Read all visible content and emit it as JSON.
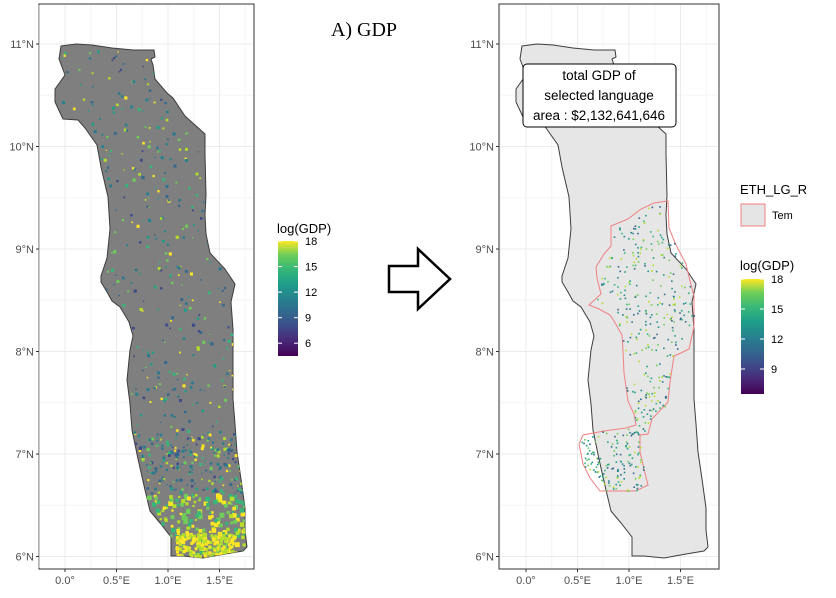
{
  "title": "A) GDP",
  "left_map": {
    "y_ticks": [
      {
        "label": "11°N",
        "lat": 11
      },
      {
        "label": "10°N",
        "lat": 10
      },
      {
        "label": "9°N",
        "lat": 9
      },
      {
        "label": "8°N",
        "lat": 8
      },
      {
        "label": "7°N",
        "lat": 7
      },
      {
        "label": "6°N",
        "lat": 6
      }
    ],
    "x_ticks": [
      {
        "label": "0.0°",
        "lon": 0.0
      },
      {
        "label": "0.5°E",
        "lon": 0.5
      },
      {
        "label": "1.0°E",
        "lon": 1.0
      },
      {
        "label": "1.5°E",
        "lon": 1.5
      }
    ],
    "legend": {
      "title": "log(GDP)",
      "range": [
        4.5,
        18
      ],
      "ticks": [
        {
          "label": "18",
          "value": 18
        },
        {
          "label": "15",
          "value": 15
        },
        {
          "label": "12",
          "value": 12
        },
        {
          "label": "9",
          "value": 9
        },
        {
          "label": "6",
          "value": 6
        }
      ]
    },
    "colors": {
      "country_fill": "#7f7f7f",
      "border": "#3d3d3d"
    }
  },
  "arrow": {
    "icon": "right-arrow-icon"
  },
  "right_map": {
    "y_ticks": [
      {
        "label": "11°N",
        "lat": 11
      },
      {
        "label": "10°N",
        "lat": 10
      },
      {
        "label": "9°N",
        "lat": 9
      },
      {
        "label": "8°N",
        "lat": 8
      },
      {
        "label": "7°N",
        "lat": 7
      },
      {
        "label": "6°N",
        "lat": 6
      }
    ],
    "x_ticks": [
      {
        "label": "0.0°",
        "lon": 0.0
      },
      {
        "label": "0.5°E",
        "lon": 0.5
      },
      {
        "label": "1.0°E",
        "lon": 1.0
      },
      {
        "label": "1.5°E",
        "lon": 1.5
      }
    ],
    "annotation": {
      "line1": "total GDP of",
      "line2": "selected language",
      "line3": "area : $2,132,641,646"
    },
    "ethnic_legend": {
      "title": "ETH_LG_R",
      "item_label": "Tem",
      "swatch_fill": "#e5e5e5",
      "swatch_stroke": "#f08080"
    },
    "legend": {
      "title": "log(GDP)",
      "range": [
        6.5,
        18
      ],
      "ticks": [
        {
          "label": "18",
          "value": 18
        },
        {
          "label": "15",
          "value": 15
        },
        {
          "label": "12",
          "value": 12
        },
        {
          "label": "9",
          "value": 9
        }
      ]
    },
    "colors": {
      "country_fill": "#e6e6e6",
      "border": "#3d3d3d",
      "region_stroke": "#f08080"
    }
  }
}
